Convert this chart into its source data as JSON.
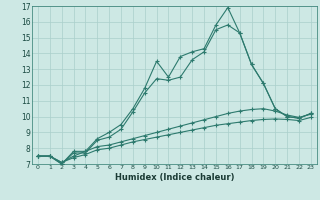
{
  "background_color": "#cde8e4",
  "grid_color": "#aacfcb",
  "line_color": "#2d7a6e",
  "xlabel": "Humidex (Indice chaleur)",
  "xlim": [
    -0.5,
    23.5
  ],
  "ylim": [
    7,
    17
  ],
  "yticks": [
    7,
    8,
    9,
    10,
    11,
    12,
    13,
    14,
    15,
    16,
    17
  ],
  "xticks": [
    0,
    1,
    2,
    3,
    4,
    5,
    6,
    7,
    8,
    9,
    10,
    11,
    12,
    13,
    14,
    15,
    16,
    17,
    18,
    19,
    20,
    21,
    22,
    23
  ],
  "series": [
    {
      "x": [
        0,
        1,
        2,
        3,
        4,
        5,
        6,
        7,
        8,
        9,
        10,
        11,
        12,
        13,
        14,
        15,
        16,
        17,
        18,
        19,
        20,
        21,
        22,
        23
      ],
      "y": [
        7.5,
        7.5,
        7.0,
        7.8,
        7.8,
        8.6,
        9.0,
        9.5,
        10.5,
        11.8,
        13.5,
        12.5,
        13.8,
        14.1,
        14.3,
        15.8,
        16.9,
        15.3,
        13.3,
        12.1,
        10.5,
        10.0,
        9.9,
        10.2
      ]
    },
    {
      "x": [
        0,
        1,
        2,
        3,
        4,
        5,
        6,
        7,
        8,
        9,
        10,
        11,
        12,
        13,
        14,
        15,
        16,
        17,
        18,
        19,
        20,
        21,
        22,
        23
      ],
      "y": [
        7.5,
        7.5,
        7.0,
        7.7,
        7.7,
        8.5,
        8.7,
        9.2,
        10.3,
        11.5,
        12.4,
        12.3,
        12.5,
        13.6,
        14.1,
        15.5,
        15.8,
        15.3,
        13.3,
        12.1,
        10.5,
        10.0,
        9.9,
        10.2
      ]
    },
    {
      "x": [
        0,
        1,
        2,
        3,
        4,
        5,
        6,
        7,
        8,
        9,
        10,
        11,
        12,
        13,
        14,
        15,
        16,
        17,
        18,
        19,
        20,
        21,
        22,
        23
      ],
      "y": [
        7.5,
        7.5,
        7.1,
        7.5,
        7.8,
        8.1,
        8.2,
        8.4,
        8.6,
        8.8,
        9.0,
        9.2,
        9.4,
        9.6,
        9.8,
        10.0,
        10.2,
        10.35,
        10.45,
        10.5,
        10.35,
        10.1,
        9.95,
        10.15
      ]
    },
    {
      "x": [
        0,
        1,
        2,
        3,
        4,
        5,
        6,
        7,
        8,
        9,
        10,
        11,
        12,
        13,
        14,
        15,
        16,
        17,
        18,
        19,
        20,
        21,
        22,
        23
      ],
      "y": [
        7.5,
        7.5,
        7.1,
        7.4,
        7.6,
        7.9,
        8.0,
        8.2,
        8.4,
        8.55,
        8.7,
        8.85,
        9.0,
        9.15,
        9.3,
        9.45,
        9.55,
        9.65,
        9.75,
        9.82,
        9.85,
        9.82,
        9.75,
        9.95
      ]
    }
  ]
}
